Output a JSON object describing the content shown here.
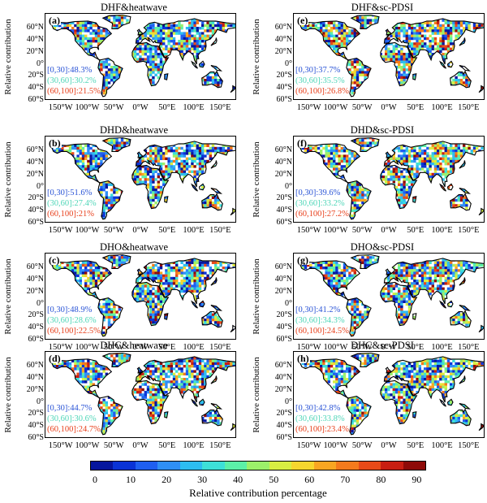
{
  "ylabel": "Relative contribution",
  "lat_ticks": [
    "60°N",
    "40°N",
    "20°N",
    "0°",
    "20°S",
    "40°S",
    "60°S"
  ],
  "lon_ticks": [
    "150°W",
    "100°W",
    "50°W",
    "0°W",
    "50°E",
    "100°E",
    "150°E"
  ],
  "stat_colors": [
    "#2a54d6",
    "#4fd6b8",
    "#e8401c"
  ],
  "panels": [
    {
      "letter": "(a)",
      "title": "DHF&heatwave",
      "stats": [
        "[0,30]:48.3%",
        "(30,60]:30.2%",
        "(60,100]:21.5%"
      ]
    },
    {
      "letter": "(e)",
      "title": "DHF&sc-PDSI",
      "stats": [
        "[0,30]:37.7%",
        "(30,60]:35.5%",
        "(60,100]:26.8%"
      ]
    },
    {
      "letter": "(b)",
      "title": "DHD&heatwave",
      "stats": [
        "[0,30]:51.6%",
        "(30,60]:27.4%",
        "(60,100]:21%"
      ]
    },
    {
      "letter": "(f)",
      "title": "DHD&sc-PDSI",
      "stats": [
        "[0,30]:39.6%",
        "(30,60]:33.2%",
        "(60,100]:27.2%"
      ]
    },
    {
      "letter": "(c)",
      "title": "DHO&heatwave",
      "stats": [
        "[0,30]:48.9%",
        "(30,60]:28.6%",
        "(60,100]:22.5%"
      ]
    },
    {
      "letter": "(g)",
      "title": "DHO&sc-PDSI",
      "stats": [
        "[0,30]:41.2%",
        "(30,60]:34.3%",
        "(60,100]:24.5%"
      ]
    },
    {
      "letter": "(d)",
      "title": "DHC&heatwave",
      "stats": [
        "[0,30]:44.7%",
        "(30,60]:30.6%",
        "(60,100]:24.7%"
      ]
    },
    {
      "letter": "(h)",
      "title": "DHC&sc-PDSI",
      "stats": [
        "[0,30]:42.8%",
        "(30,60]:33.8%",
        "(60,100]:23.4%"
      ]
    }
  ],
  "colorbar": {
    "label": "Relative contribution percentage",
    "ticks": [
      "0",
      "10",
      "20",
      "30",
      "40",
      "50",
      "60",
      "70",
      "80",
      "90"
    ],
    "colors": [
      "#06169e",
      "#0a33d6",
      "#1f5ff0",
      "#2f8ff6",
      "#2dbdf0",
      "#3de0d8",
      "#5cf0a8",
      "#9cf06a",
      "#d8ee42",
      "#f6d62e",
      "#f8a622",
      "#f47a1c",
      "#e84a18",
      "#c81e12",
      "#8e0a08"
    ]
  }
}
